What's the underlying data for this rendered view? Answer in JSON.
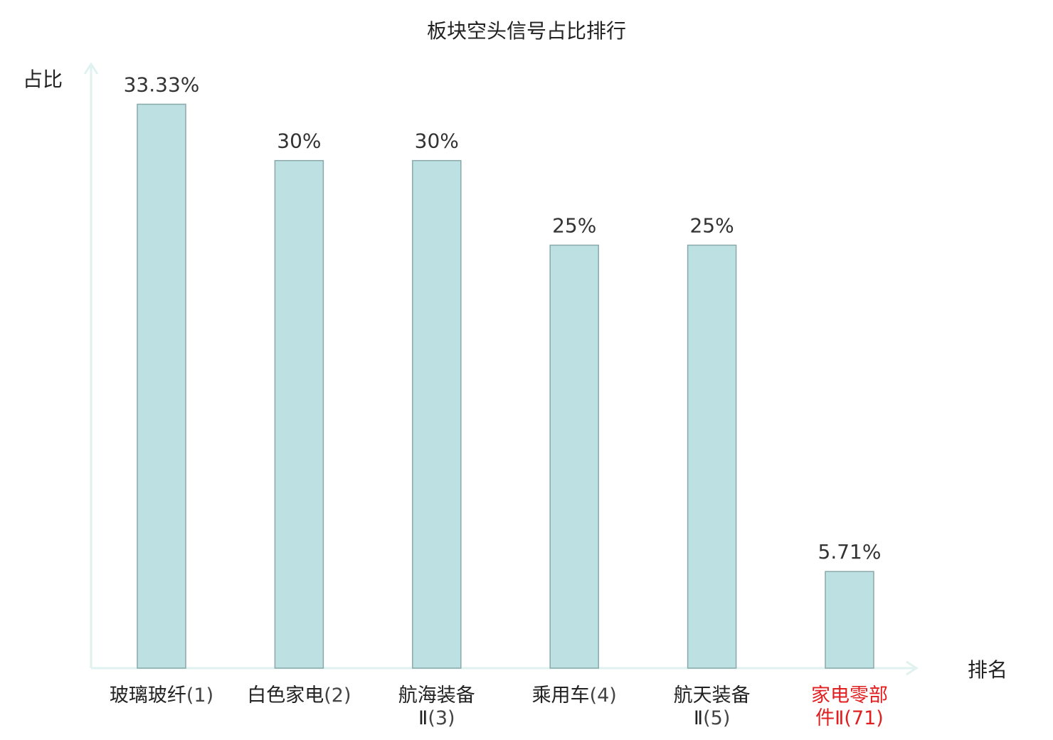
{
  "chart_data": {
    "type": "bar",
    "title": "板块空头信号占比排行",
    "ylabel": "占比",
    "xlabel": "排名",
    "ylim": [
      0,
      36
    ],
    "categories": [
      {
        "name": "玻璃玻纤",
        "rank": "(1)",
        "highlight": false
      },
      {
        "name": "白色家电",
        "rank": "(2)",
        "highlight": false
      },
      {
        "name": "航海装备Ⅱ",
        "rank": "(3)",
        "highlight": false
      },
      {
        "name": "乘用车",
        "rank": "(4)",
        "highlight": false
      },
      {
        "name": "航天装备Ⅱ",
        "rank": "(5)",
        "highlight": false
      },
      {
        "name": "家电零部件Ⅱ",
        "rank": "(71)",
        "highlight": true
      }
    ],
    "values": [
      33.33,
      30,
      30,
      25,
      25,
      5.71
    ],
    "value_labels": [
      "33.33%",
      "30%",
      "30%",
      "25%",
      "25%",
      "5.71%"
    ],
    "colors": {
      "bar_fill": "#bde1e3",
      "bar_stroke": "#8aa8aa",
      "axis": "#dff2ef",
      "highlight": "#e02020"
    }
  }
}
